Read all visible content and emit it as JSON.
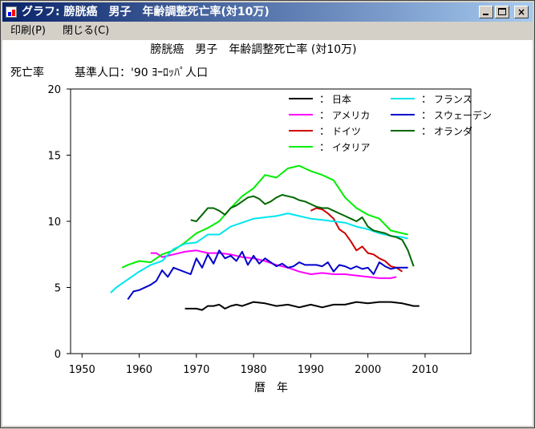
{
  "window": {
    "title": "グラフ: 膀胱癌　男子　年齢調整死亡率(対10万)",
    "minimize_glyph": "_",
    "close_glyph": "×"
  },
  "menu": {
    "print": "印刷(P)",
    "close": "閉じる(C)"
  },
  "chart_data": {
    "type": "line",
    "title": "膀胱癌　男子　年齢調整死亡率 (対10万)",
    "ylabel": "死亡率",
    "reference": "基準人口：'90 ﾖｰﾛｯﾊﾟ人口",
    "xlabel": "暦　年",
    "xlim": [
      1948,
      2018
    ],
    "ylim": [
      0,
      20
    ],
    "x_ticks": [
      1950,
      1960,
      1970,
      1980,
      1990,
      2000,
      2010
    ],
    "y_ticks": [
      0,
      5,
      10,
      15,
      20
    ],
    "grid": false,
    "legend_position": "top-right",
    "series": [
      {
        "name": "日本",
        "color": "#000000",
        "x": [
          1968,
          1970,
          1971,
          1972,
          1973,
          1974,
          1975,
          1976,
          1977,
          1978,
          1980,
          1982,
          1984,
          1986,
          1988,
          1990,
          1992,
          1994,
          1996,
          1998,
          2000,
          2002,
          2004,
          2006,
          2008,
          2009
        ],
        "y": [
          3.4,
          3.4,
          3.3,
          3.6,
          3.6,
          3.7,
          3.4,
          3.6,
          3.7,
          3.6,
          3.9,
          3.8,
          3.6,
          3.7,
          3.5,
          3.7,
          3.5,
          3.7,
          3.7,
          3.9,
          3.8,
          3.9,
          3.9,
          3.8,
          3.6,
          3.6
        ]
      },
      {
        "name": "アメリカ",
        "color": "#ff00ff",
        "x": [
          1962,
          1963,
          1964,
          1966,
          1968,
          1970,
          1972,
          1974,
          1976,
          1978,
          1980,
          1982,
          1984,
          1986,
          1988,
          1990,
          1992,
          1994,
          1996,
          1998,
          2000,
          2002,
          2004,
          2005
        ],
        "y": [
          7.6,
          7.6,
          7.3,
          7.5,
          7.7,
          7.8,
          7.6,
          7.6,
          7.5,
          7.3,
          7.2,
          7.0,
          6.7,
          6.5,
          6.2,
          6.0,
          6.1,
          6.0,
          6.0,
          5.9,
          5.8,
          5.7,
          5.7,
          5.8
        ]
      },
      {
        "name": "ドイツ",
        "color": "#cc0000",
        "x": [
          1990,
          1991,
          1992,
          1993,
          1994,
          1995,
          1996,
          1997,
          1998,
          1999,
          2000,
          2001,
          2002,
          2003,
          2004,
          2005,
          2006
        ],
        "y": [
          10.8,
          11.0,
          10.9,
          10.6,
          10.2,
          9.4,
          9.1,
          8.5,
          7.8,
          8.1,
          7.6,
          7.5,
          7.2,
          7.0,
          6.6,
          6.5,
          6.2
        ]
      },
      {
        "name": "イタリア",
        "color": "#00ee00",
        "x": [
          1957,
          1958,
          1960,
          1962,
          1964,
          1966,
          1968,
          1970,
          1972,
          1974,
          1976,
          1978,
          1980,
          1982,
          1984,
          1986,
          1988,
          1990,
          1992,
          1994,
          1996,
          1998,
          2000,
          2002,
          2004,
          2006,
          2007
        ],
        "y": [
          6.5,
          6.7,
          7.0,
          6.9,
          7.5,
          7.8,
          8.4,
          9.1,
          9.5,
          10.0,
          11.0,
          11.9,
          12.5,
          13.5,
          13.3,
          14.0,
          14.2,
          13.8,
          13.5,
          13.1,
          11.8,
          11.0,
          10.5,
          10.2,
          9.3,
          9.1,
          9.0
        ]
      },
      {
        "name": "フランス",
        "color": "#00e5ee",
        "x": [
          1955,
          1956,
          1958,
          1960,
          1962,
          1964,
          1966,
          1968,
          1970,
          1972,
          1974,
          1976,
          1978,
          1980,
          1982,
          1984,
          1986,
          1988,
          1990,
          1992,
          1994,
          1996,
          1998,
          2000,
          2002,
          2004,
          2006,
          2007
        ],
        "y": [
          4.6,
          5.0,
          5.6,
          6.2,
          6.7,
          7.0,
          7.9,
          8.3,
          8.4,
          9.0,
          9.0,
          9.6,
          9.9,
          10.2,
          10.3,
          10.4,
          10.6,
          10.4,
          10.2,
          10.1,
          10.0,
          9.9,
          9.6,
          9.4,
          9.1,
          8.9,
          8.8,
          8.7
        ]
      },
      {
        "name": "スウェーデン",
        "color": "#0000cc",
        "x": [
          1958,
          1959,
          1960,
          1962,
          1963,
          1964,
          1965,
          1966,
          1969,
          1970,
          1971,
          1972,
          1973,
          1974,
          1975,
          1976,
          1977,
          1978,
          1979,
          1980,
          1981,
          1982,
          1983,
          1984,
          1985,
          1986,
          1987,
          1988,
          1989,
          1990,
          1991,
          1992,
          1993,
          1994,
          1995,
          1996,
          1997,
          1998,
          1999,
          2000,
          2001,
          2002,
          2003,
          2004,
          2005,
          2006,
          2007
        ],
        "y": [
          4.1,
          4.7,
          4.8,
          5.2,
          5.5,
          6.3,
          5.8,
          6.5,
          6.0,
          7.2,
          6.5,
          7.5,
          6.8,
          7.8,
          7.2,
          7.4,
          7.0,
          7.7,
          6.7,
          7.4,
          6.8,
          7.2,
          6.9,
          6.6,
          6.8,
          6.5,
          6.6,
          6.9,
          6.7,
          6.7,
          6.7,
          6.6,
          6.9,
          6.2,
          6.7,
          6.6,
          6.4,
          6.6,
          6.4,
          6.5,
          6.0,
          6.9,
          6.6,
          6.4,
          6.5,
          6.5,
          6.5
        ]
      },
      {
        "name": "オランダ",
        "color": "#006600",
        "x": [
          1969,
          1970,
          1971,
          1972,
          1973,
          1974,
          1975,
          1976,
          1977,
          1978,
          1979,
          1980,
          1981,
          1982,
          1983,
          1984,
          1985,
          1986,
          1987,
          1988,
          1989,
          1990,
          1991,
          1992,
          1993,
          1994,
          1995,
          1996,
          1997,
          1998,
          1999,
          2000,
          2001,
          2002,
          2003,
          2004,
          2005,
          2006,
          2007,
          2008
        ],
        "y": [
          10.1,
          10.0,
          10.5,
          11.0,
          11.0,
          10.8,
          10.5,
          11.0,
          11.2,
          11.5,
          11.8,
          11.9,
          11.7,
          11.3,
          11.5,
          11.8,
          12.0,
          11.9,
          11.8,
          11.6,
          11.5,
          11.3,
          11.1,
          11.0,
          11.0,
          10.8,
          10.6,
          10.4,
          10.2,
          10.0,
          10.3,
          9.6,
          9.3,
          9.2,
          9.1,
          8.9,
          8.8,
          8.6,
          7.8,
          6.6
        ]
      }
    ]
  }
}
